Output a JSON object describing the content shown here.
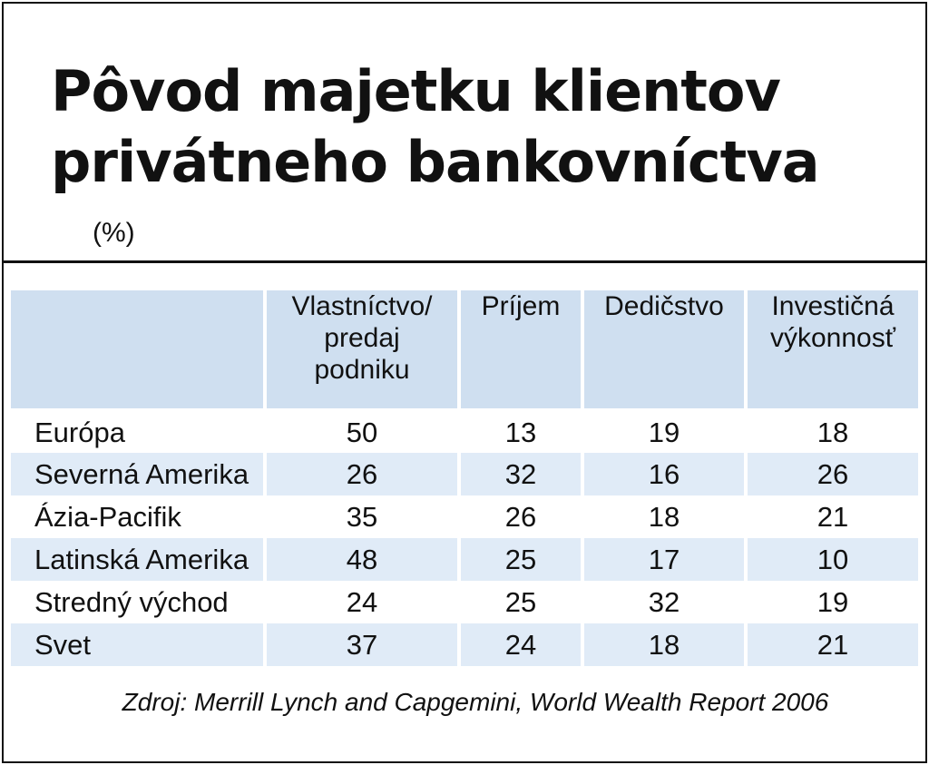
{
  "title_lines": [
    "Pôvod majetku klientov",
    "privátneho bankovníctva"
  ],
  "unit": "(%)",
  "source": "Zdroj: Merrill Lynch and Capgemini, World Wealth Report 2006",
  "colors": {
    "header_bg": "#cfdff0",
    "alt_row_bg": "#e0ebf7",
    "text": "#111111"
  },
  "chart_data": {
    "type": "table",
    "title": "Pôvod majetku klientov privátneho bankovníctva",
    "unit": "(%)",
    "columns": [
      [
        "Vlastníctvo/",
        "predaj",
        "podniku"
      ],
      [
        "Príjem"
      ],
      [
        "Dedičstvo"
      ],
      [
        "Investičná",
        "výkonnosť"
      ]
    ],
    "rows": [
      {
        "region": "Európa",
        "values": [
          50,
          13,
          19,
          18
        ]
      },
      {
        "region": "Severná Amerika",
        "values": [
          26,
          32,
          16,
          26
        ]
      },
      {
        "region": "Ázia-Pacifik",
        "values": [
          35,
          26,
          18,
          21
        ]
      },
      {
        "region": "Latinská Amerika",
        "values": [
          48,
          25,
          17,
          10
        ]
      },
      {
        "region": "Stredný východ",
        "values": [
          24,
          25,
          32,
          19
        ]
      },
      {
        "region": "Svet",
        "values": [
          37,
          24,
          18,
          21
        ]
      }
    ]
  }
}
